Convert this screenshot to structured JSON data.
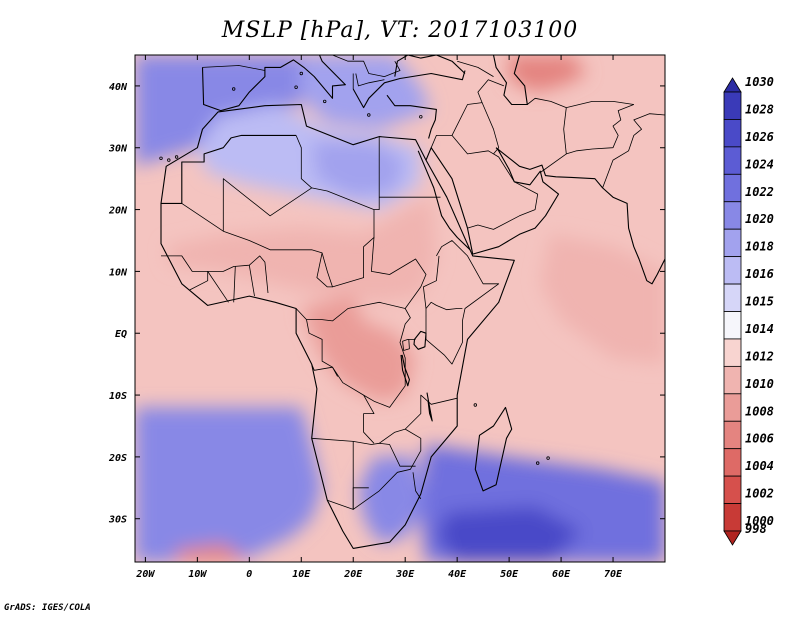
{
  "title": "MSLP [hPa], VT: 2017103100",
  "credit": "GrADS: IGES/COLA",
  "map": {
    "lon_range": [
      -22,
      80
    ],
    "lat_range": [
      -37,
      45
    ],
    "lon_ticks": [
      {
        "lon": -20,
        "label": "20W"
      },
      {
        "lon": -10,
        "label": "10W"
      },
      {
        "lon": 0,
        "label": "0"
      },
      {
        "lon": 10,
        "label": "10E"
      },
      {
        "lon": 20,
        "label": "20E"
      },
      {
        "lon": 30,
        "label": "30E"
      },
      {
        "lon": 40,
        "label": "40E"
      },
      {
        "lon": 50,
        "label": "50E"
      },
      {
        "lon": 60,
        "label": "60E"
      },
      {
        "lon": 70,
        "label": "70E"
      }
    ],
    "lat_ticks": [
      {
        "lat": 40,
        "label": "40N"
      },
      {
        "lat": 30,
        "label": "30N"
      },
      {
        "lat": 20,
        "label": "20N"
      },
      {
        "lat": 10,
        "label": "10N"
      },
      {
        "lat": 0,
        "label": "EQ"
      },
      {
        "lat": -10,
        "label": "10S"
      },
      {
        "lat": -20,
        "label": "20S"
      },
      {
        "lat": -30,
        "label": "30S"
      }
    ],
    "background_color": "#f4c4c0"
  },
  "colorbar": {
    "labels_top_to_bottom": [
      "1030",
      "1028",
      "1026",
      "1024",
      "1022",
      "1020",
      "1018",
      "1016",
      "1015",
      "1014",
      "1012",
      "1010",
      "1008",
      "1006",
      "1004",
      "1002",
      "1000",
      "998"
    ],
    "colors_top_to_bottom": [
      "#2c2ca4",
      "#3a3ab8",
      "#4a4ac8",
      "#5c5cd4",
      "#7070de",
      "#8888e6",
      "#a2a2ee",
      "#bcbcf4",
      "#d6d6f8",
      "#f6f6fb",
      "#f8d4d0",
      "#f0b4b0",
      "#ea9c98",
      "#e48480",
      "#de6a66",
      "#d6504c",
      "#c83a36",
      "#b02420"
    ]
  },
  "pressure_regions": [
    {
      "name": "n-atlantic-high",
      "value": 1020,
      "pts": [
        [
          -22,
          45
        ],
        [
          10,
          45
        ],
        [
          10,
          37
        ],
        [
          3,
          36
        ],
        [
          -6,
          35
        ],
        [
          -10,
          30
        ],
        [
          -18,
          28
        ],
        [
          -22,
          27
        ]
      ]
    },
    {
      "name": "n-africa-mid",
      "value": 1016,
      "pts": [
        [
          -10,
          30
        ],
        [
          -6,
          35
        ],
        [
          5,
          37
        ],
        [
          15,
          33
        ],
        [
          25,
          32
        ],
        [
          33,
          30
        ],
        [
          33,
          24
        ],
        [
          25,
          20
        ],
        [
          12,
          22
        ],
        [
          0,
          24
        ],
        [
          -8,
          26
        ]
      ]
    },
    {
      "name": "libya-high",
      "value": 1018,
      "pts": [
        [
          12,
          31
        ],
        [
          24,
          31
        ],
        [
          30,
          28
        ],
        [
          28,
          23
        ],
        [
          20,
          22
        ],
        [
          13,
          25
        ]
      ]
    },
    {
      "name": "mediterranean-high",
      "value": 1018,
      "pts": [
        [
          10,
          45
        ],
        [
          28,
          45
        ],
        [
          33,
          40
        ],
        [
          35,
          36
        ],
        [
          25,
          33
        ],
        [
          15,
          34
        ],
        [
          10,
          38
        ]
      ]
    },
    {
      "name": "sahel-low",
      "value": 1010,
      "pts": [
        [
          -16,
          14
        ],
        [
          -5,
          16
        ],
        [
          10,
          17
        ],
        [
          22,
          16
        ],
        [
          30,
          20
        ],
        [
          35,
          22
        ],
        [
          36,
          12
        ],
        [
          33,
          6
        ],
        [
          25,
          5
        ],
        [
          15,
          6
        ],
        [
          5,
          8
        ],
        [
          -5,
          10
        ],
        [
          -15,
          11
        ]
      ]
    },
    {
      "name": "central-africa-low",
      "value": 1008,
      "pts": [
        [
          10,
          4
        ],
        [
          15,
          5
        ],
        [
          20,
          6
        ],
        [
          22,
          2
        ],
        [
          28,
          0
        ],
        [
          32,
          -4
        ],
        [
          30,
          -10
        ],
        [
          25,
          -11
        ],
        [
          18,
          -8
        ],
        [
          14,
          -4
        ],
        [
          12,
          0
        ]
      ]
    },
    {
      "name": "arabian-sea-low",
      "value": 1010,
      "pts": [
        [
          58,
          16
        ],
        [
          70,
          14
        ],
        [
          80,
          10
        ],
        [
          80,
          -5
        ],
        [
          70,
          -4
        ],
        [
          60,
          2
        ],
        [
          56,
          8
        ]
      ]
    },
    {
      "name": "iran-low",
      "value": 1006,
      "pts": [
        [
          50,
          45
        ],
        [
          62,
          45
        ],
        [
          65,
          42
        ],
        [
          60,
          40
        ],
        [
          55,
          39
        ],
        [
          50,
          41
        ]
      ]
    },
    {
      "name": "south-atlantic-high",
      "value": 1020,
      "pts": [
        [
          -22,
          -12
        ],
        [
          10,
          -12
        ],
        [
          12,
          -18
        ],
        [
          14,
          -25
        ],
        [
          12,
          -30
        ],
        [
          8,
          -33
        ],
        [
          -2,
          -37
        ],
        [
          -22,
          -37
        ]
      ]
    },
    {
      "name": "southern-africa-high",
      "value": 1020,
      "pts": [
        [
          24,
          -20
        ],
        [
          32,
          -20
        ],
        [
          34,
          -28
        ],
        [
          30,
          -33
        ],
        [
          25,
          -34
        ],
        [
          22,
          -30
        ],
        [
          21,
          -25
        ]
      ]
    },
    {
      "name": "indian-ocean-high",
      "value": 1022,
      "pts": [
        [
          34,
          -18
        ],
        [
          50,
          -20
        ],
        [
          68,
          -22
        ],
        [
          80,
          -24
        ],
        [
          80,
          -37
        ],
        [
          34,
          -37
        ],
        [
          33,
          -30
        ]
      ]
    },
    {
      "name": "indian-ocean-core",
      "value": 1026,
      "pts": [
        [
          38,
          -29
        ],
        [
          55,
          -28
        ],
        [
          64,
          -32
        ],
        [
          58,
          -37
        ],
        [
          40,
          -37
        ],
        [
          36,
          -33
        ]
      ]
    },
    {
      "name": "sw-atlantic-low",
      "value": 1006,
      "pts": [
        [
          -14,
          -35
        ],
        [
          -5,
          -34
        ],
        [
          0,
          -37
        ],
        [
          -14,
          -37
        ]
      ]
    }
  ],
  "countries_note": "Land outlines"
}
